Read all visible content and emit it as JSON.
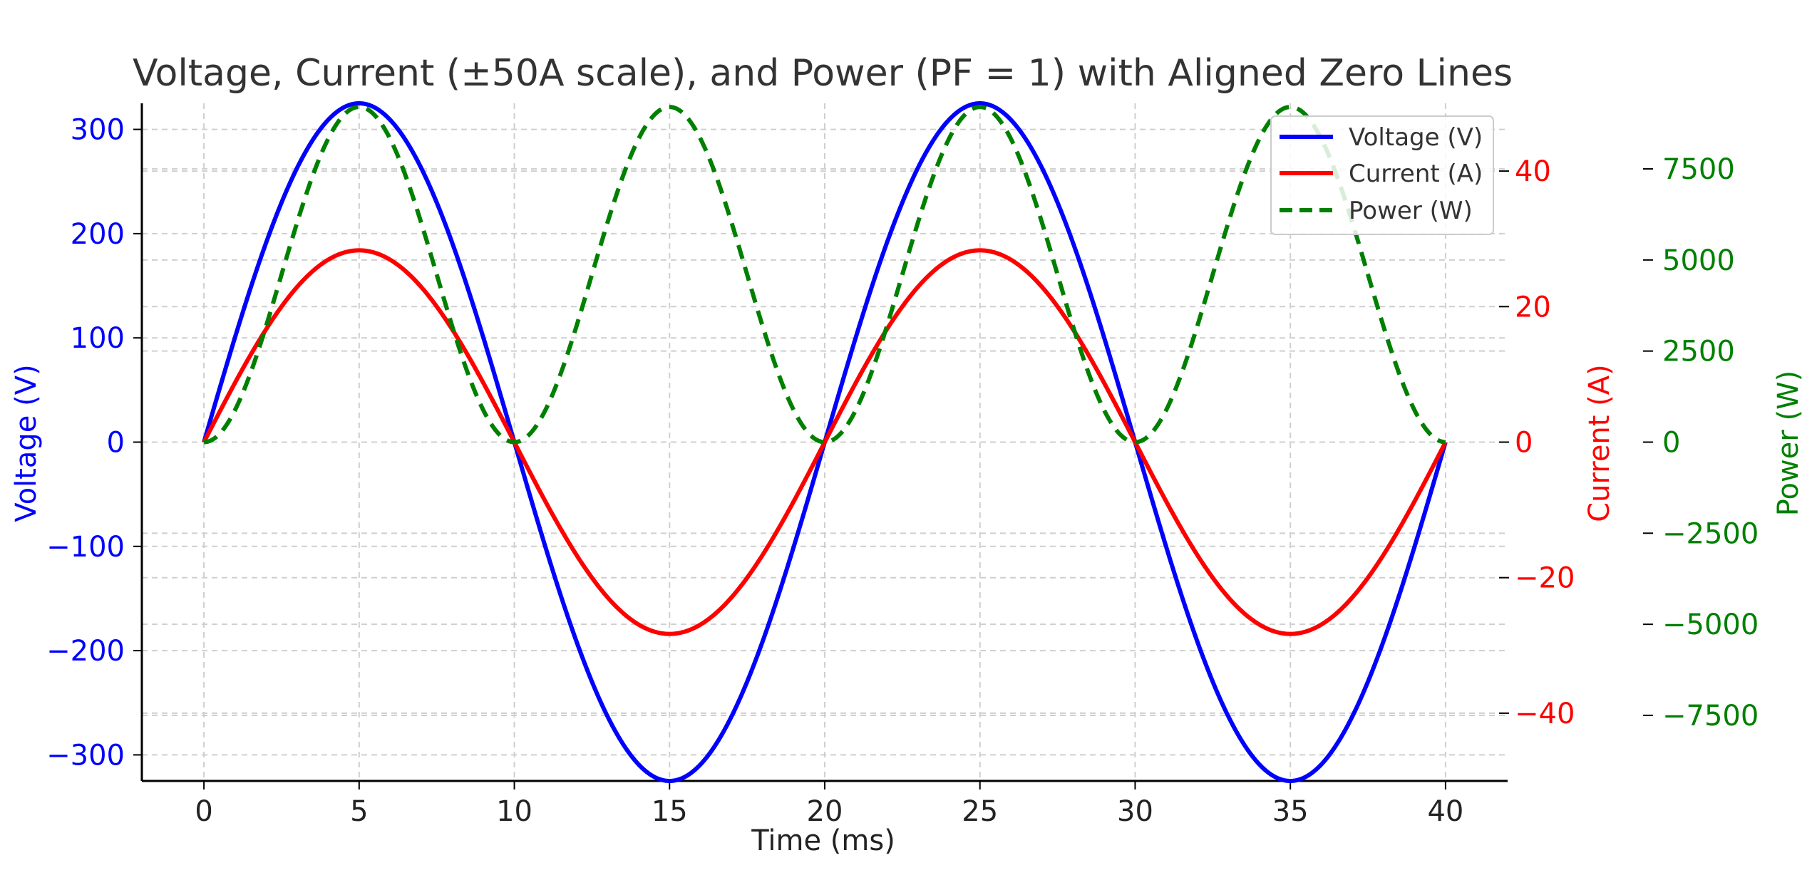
{
  "chart_data": {
    "type": "line",
    "title": "Voltage, Current (±50A scale), and Power (PF = 1) with Aligned Zero Lines",
    "xlabel": "Time (ms)",
    "xlim": [
      -2,
      42
    ],
    "x_ticks": [
      "0",
      "5",
      "10",
      "15",
      "20",
      "25",
      "30",
      "35",
      "40"
    ],
    "grid": true,
    "legend_position": "top-right",
    "axes": {
      "voltage": {
        "label": "Voltage (V)",
        "side": "left",
        "color": "#0000ff",
        "ylim": [
          -325,
          325
        ],
        "ticks": [
          "300",
          "200",
          "100",
          "0",
          "−100",
          "−200",
          "−300"
        ]
      },
      "current": {
        "label": "Current (A)",
        "side": "right",
        "color": "#ff0000",
        "ylim": [
          -50,
          50
        ],
        "ticks": [
          "40",
          "20",
          "0",
          "−20",
          "−40"
        ]
      },
      "power": {
        "label": "Power (W)",
        "side": "right-outer",
        "color": "#008000",
        "ylim": [
          -9300,
          9300
        ],
        "ticks": [
          "7500",
          "5000",
          "2500",
          "0",
          "−2500",
          "−5000",
          "−7500"
        ]
      }
    },
    "series": [
      {
        "name": "Voltage (V)",
        "axis": "voltage",
        "color": "#0000ff",
        "style": "solid",
        "function": "325 * sin(2π·50·t)",
        "amplitude": 325,
        "frequency_hz": 50
      },
      {
        "name": "Current (A)",
        "axis": "current",
        "color": "#ff0000",
        "style": "solid",
        "function": "28.3 * sin(2π·50·t)",
        "amplitude": 28.3,
        "frequency_hz": 50
      },
      {
        "name": "Power (W)",
        "axis": "power",
        "color": "#008000",
        "style": "dashed",
        "function": "9200 * sin²(2π·50·t)",
        "amplitude": 9200,
        "frequency_hz": 50
      }
    ],
    "x_range_ms": [
      0,
      40
    ]
  }
}
